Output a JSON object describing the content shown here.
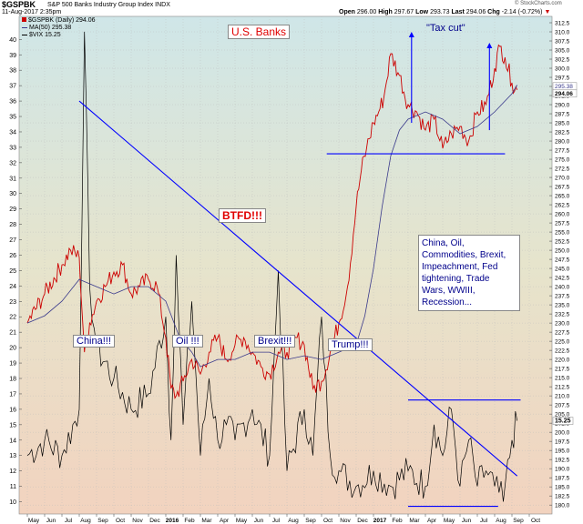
{
  "header": {
    "symbol": "$GSPBK",
    "name": "S&P 500 Banks Industry Group Index",
    "exchange": "INDX",
    "timestamp": "11-Aug-2017 2:35pm",
    "open_label": "Open",
    "open": "296.00",
    "high_label": "High",
    "high": "297.67",
    "low_label": "Low",
    "low": "293.73",
    "last_label": "Last",
    "last": "294.06",
    "chg_label": "Chg",
    "chg": "-2.14 (-0.72%)",
    "chg_arrow": "▼",
    "watermark": "© StockCharts.com"
  },
  "legend": [
    {
      "label": "$GSPBK (Daily) 294.06",
      "color": "#cc0000",
      "marker": "square"
    },
    {
      "label": "MA(50) 295.38",
      "color": "#3a3a8c",
      "marker": "line"
    },
    {
      "label": "$VIX 15.25",
      "color": "#000000",
      "marker": "line"
    }
  ],
  "annotations": {
    "title": "U.S. Banks",
    "btfd": "BTFD!!!",
    "china": "China!!!",
    "oil": "Oil !!!",
    "brexit": "Brexit!!!",
    "trump": "Trump!!!",
    "tax_cut": "\"Tax cut\"",
    "box_text": "China, Oil,\nCommodities, Brexit,\nImpeachment, Fed\ntightening, Trade\nWars, WWIII,\nRecession..."
  },
  "chart_data": {
    "type": "line",
    "colors": {
      "price": "#cc0000",
      "ma50": "#3a3a8c",
      "vix": "#000000",
      "annotation": "#0000ff",
      "bg_top": "#cfe6e8",
      "bg_bottom": "#f2d3bf"
    },
    "x_tick_labels": [
      "May",
      "Jun",
      "Jul",
      "Aug",
      "Sep",
      "Oct",
      "Nov",
      "Dec",
      "2016",
      "Feb",
      "Mar",
      "Apr",
      "May",
      "Jun",
      "Jul",
      "Aug",
      "Sep",
      "Oct",
      "Nov",
      "Dec",
      "2017",
      "Feb",
      "Mar",
      "Apr",
      "May",
      "Jun",
      "Jul",
      "Aug",
      "Sep",
      "Oct"
    ],
    "y_left_ticks": [
      10,
      11,
      12,
      13,
      14,
      15,
      16,
      17,
      18,
      19,
      20,
      21,
      22,
      23,
      24,
      25,
      26,
      27,
      28,
      29,
      30,
      31,
      32,
      33,
      34,
      35,
      36,
      37,
      38,
      39,
      40
    ],
    "y_right_ticks": [
      "180.0",
      "182.5",
      "185.0",
      "187.5",
      "190.0",
      "192.5",
      "195.0",
      "197.5",
      "200.0",
      "202.5",
      "205.0",
      "207.5",
      "210.0",
      "212.5",
      "215.0",
      "217.5",
      "220.0",
      "222.5",
      "225.0",
      "227.5",
      "230.0",
      "232.5",
      "235.0",
      "237.5",
      "240.0",
      "242.5",
      "245.0",
      "247.5",
      "250.0",
      "252.5",
      "255.0",
      "257.5",
      "260.0",
      "262.5",
      "265.0",
      "267.5",
      "270.0",
      "272.5",
      "275.0",
      "277.5",
      "280.0",
      "282.5",
      "285.0",
      "287.5",
      "290.0",
      "292.5",
      "295.0",
      "297.5",
      "300.0",
      "302.5",
      "305.0",
      "307.5",
      "310.0",
      "312.5"
    ],
    "y_left_range": [
      9.5,
      41.2
    ],
    "y_right_range": [
      178.8,
      313.0
    ],
    "x_range_months": [
      0,
      30
    ],
    "price_label": "294.06",
    "vix_label": "15.25",
    "ma_label": "295.38",
    "price": {
      "name": "$GSPBK (Daily)",
      "x": [
        0,
        1,
        2,
        2.5,
        3,
        3.3,
        3.6,
        4,
        4.5,
        5,
        5.5,
        6,
        6.5,
        7,
        7.5,
        8,
        8.3,
        8.6,
        9,
        9.5,
        10,
        10.5,
        11,
        11.5,
        12,
        12.5,
        13,
        13.5,
        14,
        14.5,
        15,
        15.5,
        16,
        16.5,
        17,
        17.5,
        18,
        18.5,
        19,
        19.3,
        19.6,
        20,
        20.3,
        20.6,
        21,
        21.5,
        22,
        22.5,
        23,
        23.5,
        24,
        24.5,
        25,
        25.5,
        26,
        26.5,
        27,
        27.3,
        27.6,
        28,
        28.3
      ],
      "y": [
        230,
        238,
        246,
        250,
        248,
        222,
        230,
        236,
        240,
        244,
        246,
        238,
        240,
        242,
        240,
        226,
        212,
        210,
        214,
        220,
        216,
        222,
        226,
        220,
        224,
        226,
        222,
        218,
        216,
        222,
        222,
        226,
        224,
        212,
        214,
        222,
        230,
        240,
        262,
        272,
        278,
        285,
        288,
        292,
        304,
        298,
        290,
        288,
        283,
        286,
        278,
        282,
        284,
        280,
        288,
        290,
        300,
        306,
        303,
        296,
        294.06
      ]
    },
    "ma50": {
      "name": "MA(50)",
      "x": [
        0,
        1,
        2,
        3,
        4,
        5,
        6,
        7,
        8,
        8.8,
        9.5,
        10,
        11,
        12,
        13,
        14,
        15,
        16,
        17,
        18,
        19,
        19.5,
        20,
        20.5,
        21,
        21.5,
        22,
        23,
        24,
        25,
        26,
        27,
        28,
        28.3
      ],
      "y": [
        230,
        232,
        236,
        242,
        240,
        238,
        240,
        240,
        236,
        226,
        222,
        218,
        220,
        220,
        222,
        222,
        220,
        221,
        220,
        222,
        224,
        232,
        245,
        262,
        276,
        283,
        286,
        288,
        286,
        282,
        284,
        288,
        293,
        295.38
      ]
    },
    "vix": {
      "name": "$VIX",
      "x": [
        0,
        1,
        2,
        3,
        3.3,
        3.6,
        4,
        5,
        6,
        7,
        8,
        8.3,
        8.6,
        9,
        9.5,
        10,
        10.5,
        11,
        11.5,
        12,
        13,
        14,
        14.5,
        15,
        16,
        16.5,
        17,
        17.5,
        18,
        19,
        20,
        21,
        22,
        23,
        23.5,
        24,
        24.5,
        25,
        25.5,
        26,
        26.5,
        27,
        27.5,
        28,
        28.3
      ],
      "y": [
        13,
        14,
        13,
        16,
        40.5,
        24,
        20,
        18,
        16,
        17,
        22,
        14,
        26,
        15,
        23,
        13,
        18,
        14,
        15,
        14,
        16,
        13,
        25,
        12,
        16,
        13,
        22,
        13,
        12,
        11,
        12,
        11,
        12,
        11,
        15,
        13,
        16,
        11,
        14,
        11,
        12,
        11,
        10,
        14,
        15.25
      ]
    },
    "annotations_lines": [
      {
        "desc": "down trendline",
        "x": [
          3,
          28.3
        ],
        "y_price": [
          291,
          188
        ]
      },
      {
        "desc": "support 277",
        "x": [
          17.3,
          27.6
        ],
        "y_price": [
          276.5,
          276.5
        ]
      },
      {
        "desc": "vix ceiling",
        "x": [
          22,
          28.5
        ],
        "y_vix": [
          16.6,
          16.6
        ]
      },
      {
        "desc": "vix floor",
        "x": [
          22,
          27.2
        ],
        "y_vix": [
          9.7,
          9.7
        ]
      }
    ]
  }
}
